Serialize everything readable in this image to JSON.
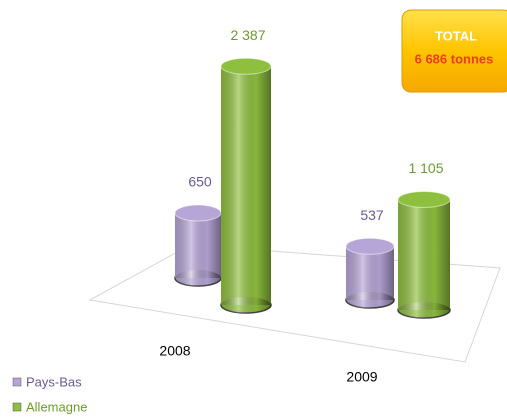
{
  "chart_data": {
    "type": "bar3d",
    "categories": [
      "2008",
      "2009"
    ],
    "series": [
      {
        "name": "Pays-Bas",
        "color": "#b6a5d6",
        "label_color": "#6a5a90",
        "values": [
          650,
          537
        ]
      },
      {
        "name": "Allemagne",
        "color": "#8fbf3f",
        "label_color": "#6e9a2c",
        "values": [
          2387,
          1105
        ],
        "value_labels": [
          "2 387",
          "1 105"
        ]
      }
    ],
    "annotation": {
      "title": "TOTAL",
      "text": "6 686 tonnes"
    }
  }
}
